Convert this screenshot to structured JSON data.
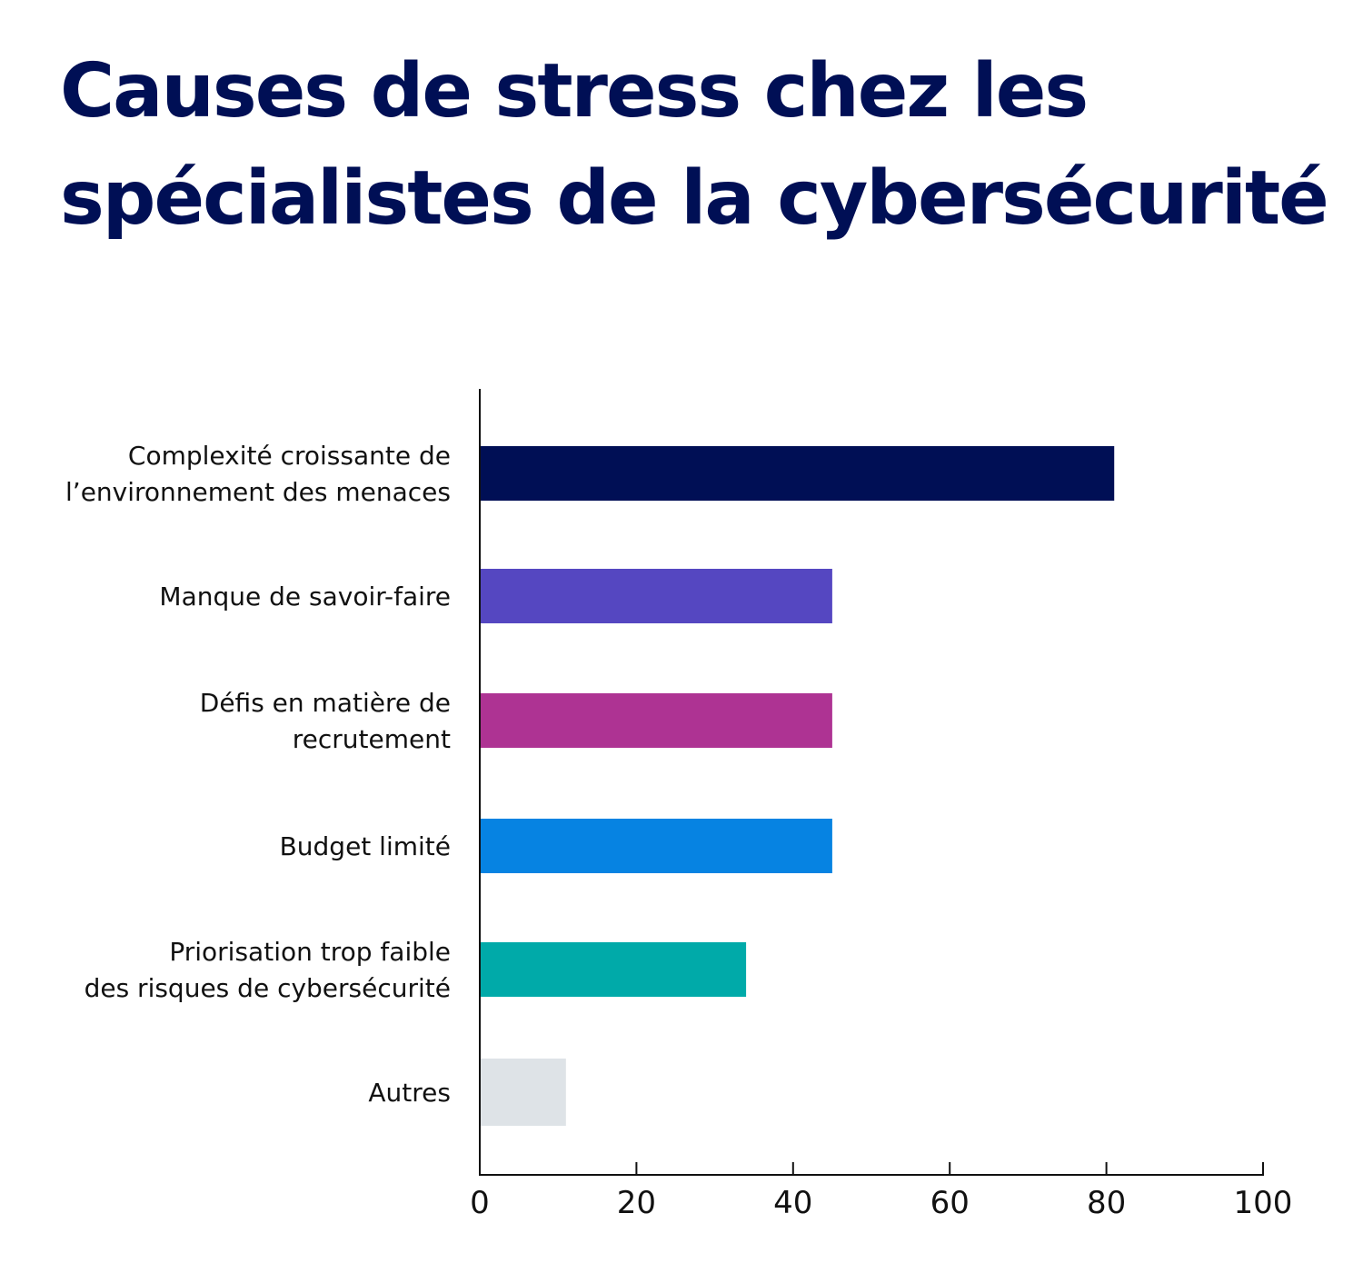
{
  "chart_data": {
    "type": "bar",
    "orientation": "horizontal",
    "title_lines": [
      "Causes de stress chez les",
      "spécialistes de la cybersécurité"
    ],
    "categories": [
      [
        "Complexité croissante de",
        "l’environnement des menaces"
      ],
      [
        "Manque de savoir-faire"
      ],
      [
        "Défis en matière de",
        "recrutement"
      ],
      [
        "Budget limité"
      ],
      [
        "Priorisation trop faible",
        "des risques de cybersécurité"
      ],
      [
        "Autres"
      ]
    ],
    "values": [
      81,
      45,
      45,
      45,
      34,
      11
    ],
    "colors": [
      "#000f55",
      "#5547c1",
      "#ae3393",
      "#0683e2",
      "#00aaa9",
      "#dee3e7"
    ],
    "xlim": [
      0,
      100
    ],
    "xticks": [
      0,
      20,
      40,
      60,
      80,
      100
    ],
    "tick_labels": [
      "0",
      "20",
      "40",
      "60",
      "80",
      "100"
    ],
    "xlabel": "",
    "ylabel": "",
    "grid": false,
    "legend": "none",
    "title_color": "#000f55"
  }
}
